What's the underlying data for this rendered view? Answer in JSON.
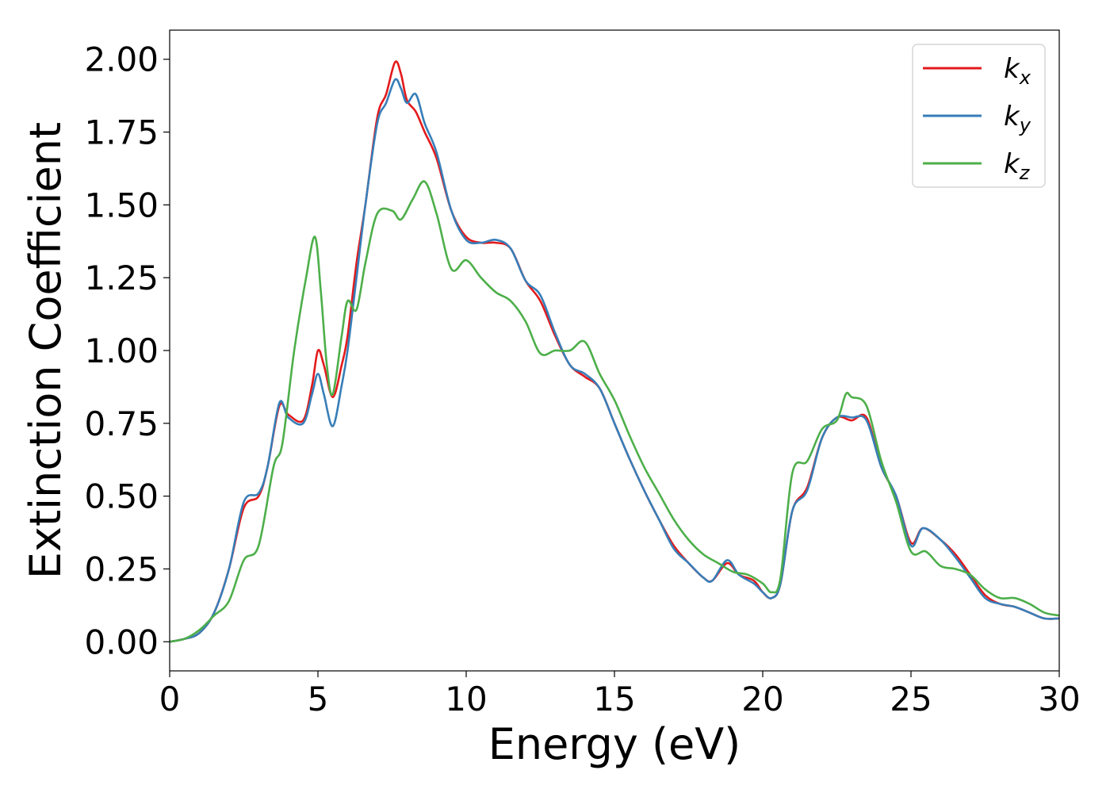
{
  "chart_data": {
    "type": "line",
    "title": "",
    "xlabel": "Energy (eV)",
    "ylabel": "Extinction Coefficient",
    "xlim": [
      0,
      30
    ],
    "ylim": [
      -0.1,
      2.1
    ],
    "x_ticks": [
      0,
      5,
      10,
      15,
      20,
      25,
      30
    ],
    "x_tick_labels": [
      "0",
      "5",
      "10",
      "15",
      "20",
      "25",
      "30"
    ],
    "y_ticks": [
      0,
      0.25,
      0.5,
      0.75,
      1.0,
      1.25,
      1.5,
      1.75,
      2.0
    ],
    "y_tick_labels": [
      "0.00",
      "0.25",
      "0.50",
      "0.75",
      "1.00",
      "1.25",
      "1.50",
      "1.75",
      "2.00"
    ],
    "grid": false,
    "legend_position": "top-right",
    "series": [
      {
        "name": "k_x",
        "base": "k",
        "sub": "x",
        "color": "#e31a1c",
        "points": [
          [
            0,
            0
          ],
          [
            0.5,
            0.01
          ],
          [
            1,
            0.03
          ],
          [
            1.5,
            0.1
          ],
          [
            2,
            0.25
          ],
          [
            2.5,
            0.46
          ],
          [
            3,
            0.5
          ],
          [
            3.3,
            0.6
          ],
          [
            3.7,
            0.81
          ],
          [
            4,
            0.78
          ],
          [
            4.5,
            0.76
          ],
          [
            4.8,
            0.88
          ],
          [
            5,
            1.0
          ],
          [
            5.2,
            0.95
          ],
          [
            5.5,
            0.84
          ],
          [
            5.8,
            0.95
          ],
          [
            6,
            1.05
          ],
          [
            6.3,
            1.3
          ],
          [
            6.6,
            1.5
          ],
          [
            7,
            1.8
          ],
          [
            7.3,
            1.88
          ],
          [
            7.6,
            1.99
          ],
          [
            7.8,
            1.95
          ],
          [
            8,
            1.86
          ],
          [
            8.3,
            1.82
          ],
          [
            8.6,
            1.75
          ],
          [
            9,
            1.66
          ],
          [
            9.5,
            1.48
          ],
          [
            10,
            1.39
          ],
          [
            10.5,
            1.37
          ],
          [
            11,
            1.37
          ],
          [
            11.5,
            1.35
          ],
          [
            12,
            1.24
          ],
          [
            12.5,
            1.17
          ],
          [
            13,
            1.05
          ],
          [
            13.5,
            0.95
          ],
          [
            14,
            0.91
          ],
          [
            14.5,
            0.87
          ],
          [
            15,
            0.75
          ],
          [
            15.5,
            0.63
          ],
          [
            16,
            0.52
          ],
          [
            16.5,
            0.42
          ],
          [
            17,
            0.33
          ],
          [
            17.5,
            0.27
          ],
          [
            18,
            0.22
          ],
          [
            18.3,
            0.21
          ],
          [
            18.8,
            0.27
          ],
          [
            19.2,
            0.23
          ],
          [
            19.7,
            0.21
          ],
          [
            20,
            0.17
          ],
          [
            20.3,
            0.15
          ],
          [
            20.6,
            0.2
          ],
          [
            21,
            0.45
          ],
          [
            21.5,
            0.53
          ],
          [
            22,
            0.7
          ],
          [
            22.5,
            0.77
          ],
          [
            23,
            0.76
          ],
          [
            23.5,
            0.77
          ],
          [
            24,
            0.6
          ],
          [
            24.5,
            0.5
          ],
          [
            25,
            0.34
          ],
          [
            25.4,
            0.39
          ],
          [
            26,
            0.35
          ],
          [
            26.5,
            0.3
          ],
          [
            27,
            0.23
          ],
          [
            27.5,
            0.16
          ],
          [
            28,
            0.13
          ],
          [
            28.5,
            0.12
          ],
          [
            29,
            0.1
          ],
          [
            29.5,
            0.08
          ],
          [
            30,
            0.08
          ]
        ]
      },
      {
        "name": "k_y",
        "base": "k",
        "sub": "y",
        "color": "#377eb8",
        "points": [
          [
            0,
            0
          ],
          [
            0.5,
            0.01
          ],
          [
            1,
            0.03
          ],
          [
            1.5,
            0.1
          ],
          [
            2,
            0.25
          ],
          [
            2.5,
            0.48
          ],
          [
            3,
            0.51
          ],
          [
            3.3,
            0.6
          ],
          [
            3.7,
            0.82
          ],
          [
            4,
            0.77
          ],
          [
            4.5,
            0.75
          ],
          [
            4.8,
            0.85
          ],
          [
            5,
            0.92
          ],
          [
            5.2,
            0.85
          ],
          [
            5.5,
            0.74
          ],
          [
            5.8,
            0.88
          ],
          [
            6,
            1.0
          ],
          [
            6.3,
            1.25
          ],
          [
            6.6,
            1.5
          ],
          [
            7,
            1.78
          ],
          [
            7.3,
            1.85
          ],
          [
            7.6,
            1.93
          ],
          [
            7.8,
            1.9
          ],
          [
            8,
            1.85
          ],
          [
            8.3,
            1.88
          ],
          [
            8.6,
            1.78
          ],
          [
            9,
            1.68
          ],
          [
            9.5,
            1.48
          ],
          [
            10,
            1.38
          ],
          [
            10.5,
            1.37
          ],
          [
            11,
            1.38
          ],
          [
            11.5,
            1.35
          ],
          [
            12,
            1.24
          ],
          [
            12.5,
            1.19
          ],
          [
            13,
            1.06
          ],
          [
            13.5,
            0.95
          ],
          [
            14,
            0.92
          ],
          [
            14.5,
            0.87
          ],
          [
            15,
            0.75
          ],
          [
            15.5,
            0.63
          ],
          [
            16,
            0.52
          ],
          [
            16.5,
            0.42
          ],
          [
            17,
            0.32
          ],
          [
            17.5,
            0.27
          ],
          [
            18,
            0.22
          ],
          [
            18.3,
            0.21
          ],
          [
            18.8,
            0.28
          ],
          [
            19.2,
            0.23
          ],
          [
            19.7,
            0.2
          ],
          [
            20,
            0.17
          ],
          [
            20.3,
            0.15
          ],
          [
            20.6,
            0.2
          ],
          [
            21,
            0.45
          ],
          [
            21.5,
            0.52
          ],
          [
            22,
            0.7
          ],
          [
            22.5,
            0.77
          ],
          [
            23,
            0.77
          ],
          [
            23.5,
            0.76
          ],
          [
            24,
            0.6
          ],
          [
            24.5,
            0.5
          ],
          [
            25,
            0.33
          ],
          [
            25.4,
            0.39
          ],
          [
            26,
            0.35
          ],
          [
            26.5,
            0.29
          ],
          [
            27,
            0.22
          ],
          [
            27.5,
            0.15
          ],
          [
            28,
            0.13
          ],
          [
            28.5,
            0.12
          ],
          [
            29,
            0.1
          ],
          [
            29.5,
            0.08
          ],
          [
            30,
            0.08
          ]
        ]
      },
      {
        "name": "k_z",
        "base": "k",
        "sub": "z",
        "color": "#4daf4a",
        "points": [
          [
            0,
            0
          ],
          [
            0.5,
            0.01
          ],
          [
            1,
            0.04
          ],
          [
            1.5,
            0.09
          ],
          [
            2,
            0.14
          ],
          [
            2.5,
            0.28
          ],
          [
            3,
            0.33
          ],
          [
            3.5,
            0.6
          ],
          [
            3.8,
            0.68
          ],
          [
            4.2,
            1.0
          ],
          [
            4.6,
            1.25
          ],
          [
            4.9,
            1.39
          ],
          [
            5.1,
            1.2
          ],
          [
            5.3,
            0.95
          ],
          [
            5.5,
            0.85
          ],
          [
            5.8,
            1.05
          ],
          [
            6,
            1.17
          ],
          [
            6.3,
            1.14
          ],
          [
            6.6,
            1.3
          ],
          [
            7,
            1.47
          ],
          [
            7.5,
            1.48
          ],
          [
            7.8,
            1.45
          ],
          [
            8.2,
            1.52
          ],
          [
            8.6,
            1.58
          ],
          [
            9,
            1.47
          ],
          [
            9.5,
            1.28
          ],
          [
            10,
            1.31
          ],
          [
            10.5,
            1.25
          ],
          [
            11,
            1.2
          ],
          [
            11.5,
            1.17
          ],
          [
            12,
            1.1
          ],
          [
            12.5,
            0.99
          ],
          [
            13,
            1.0
          ],
          [
            13.5,
            1.0
          ],
          [
            14,
            1.03
          ],
          [
            14.5,
            0.92
          ],
          [
            15,
            0.83
          ],
          [
            15.5,
            0.71
          ],
          [
            16,
            0.6
          ],
          [
            16.5,
            0.51
          ],
          [
            17,
            0.42
          ],
          [
            17.5,
            0.35
          ],
          [
            18,
            0.3
          ],
          [
            18.5,
            0.27
          ],
          [
            19,
            0.24
          ],
          [
            19.5,
            0.23
          ],
          [
            20,
            0.2
          ],
          [
            20.3,
            0.17
          ],
          [
            20.6,
            0.22
          ],
          [
            21,
            0.58
          ],
          [
            21.5,
            0.62
          ],
          [
            22,
            0.73
          ],
          [
            22.5,
            0.76
          ],
          [
            22.8,
            0.85
          ],
          [
            23,
            0.84
          ],
          [
            23.5,
            0.81
          ],
          [
            24,
            0.62
          ],
          [
            24.5,
            0.48
          ],
          [
            25,
            0.31
          ],
          [
            25.5,
            0.31
          ],
          [
            26,
            0.26
          ],
          [
            26.5,
            0.25
          ],
          [
            27,
            0.23
          ],
          [
            27.5,
            0.18
          ],
          [
            28,
            0.15
          ],
          [
            28.5,
            0.15
          ],
          [
            29,
            0.13
          ],
          [
            29.5,
            0.1
          ],
          [
            30,
            0.09
          ]
        ]
      }
    ]
  }
}
